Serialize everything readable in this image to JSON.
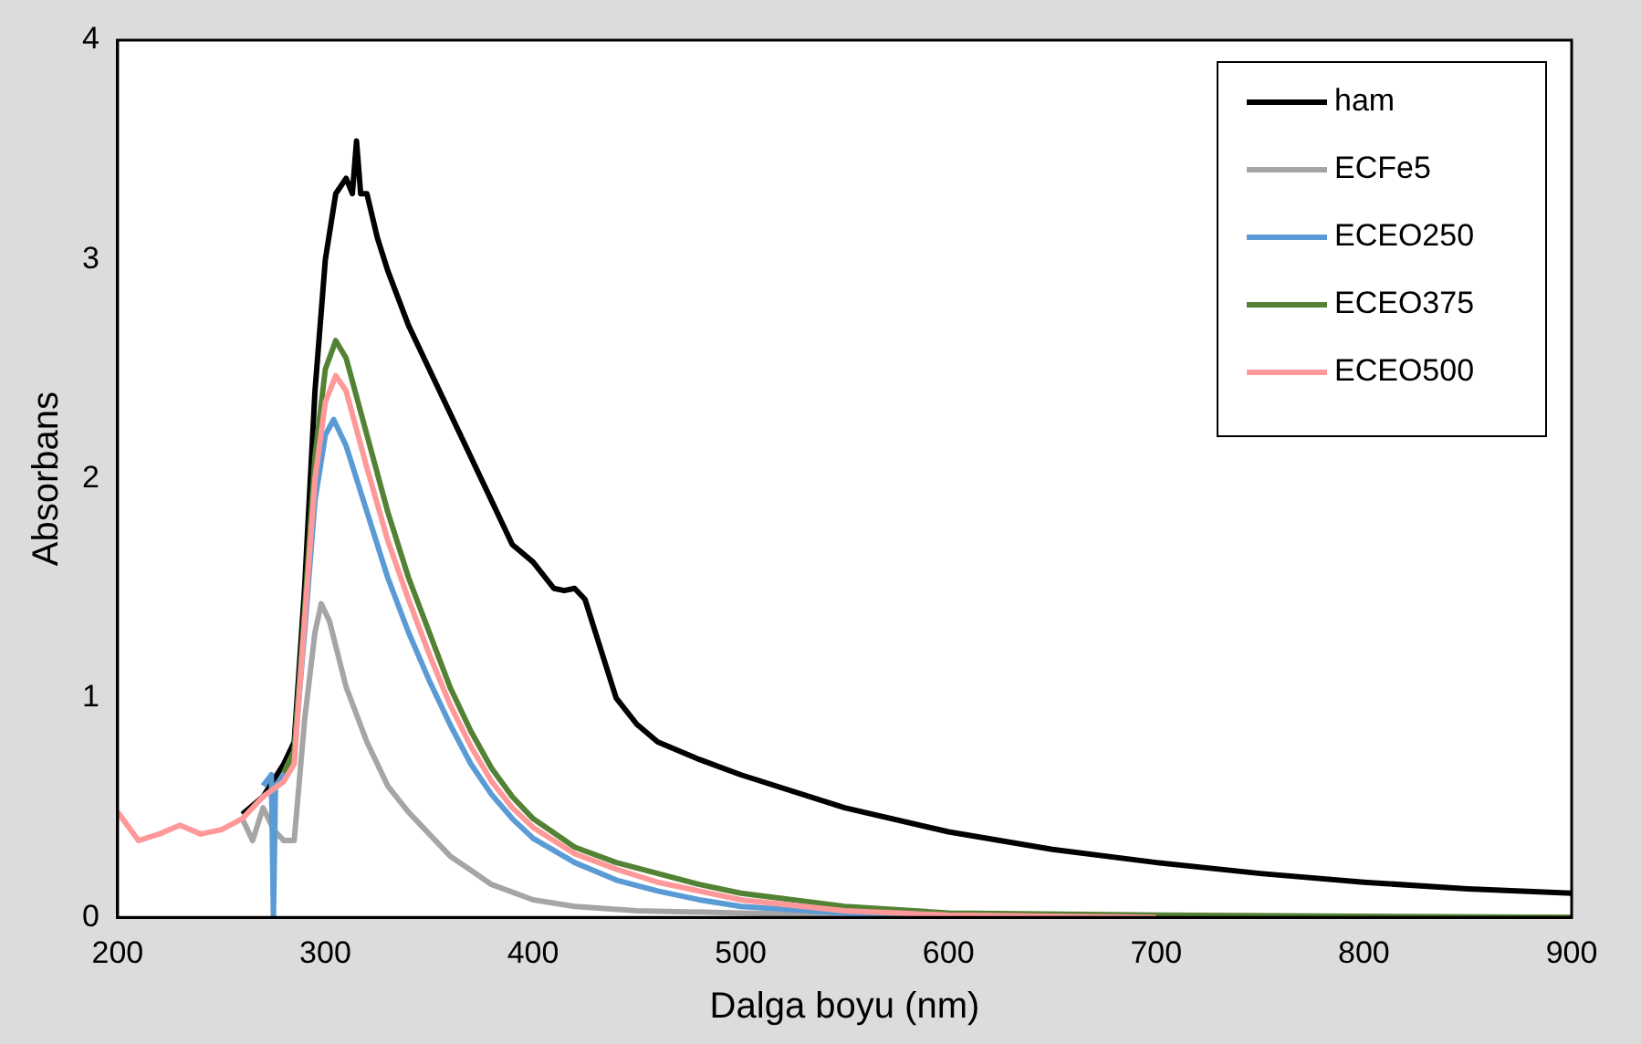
{
  "chart_data": {
    "type": "line",
    "xlabel": "Dalga boyu (nm)",
    "ylabel": "Absorbans",
    "xlim": [
      200,
      900
    ],
    "xticks": [
      200,
      300,
      400,
      500,
      600,
      700,
      800,
      900
    ],
    "ylim": [
      0,
      4
    ],
    "yticks": [
      0,
      1,
      2,
      3,
      4
    ],
    "grid": false,
    "legend": "top right",
    "marker": "none",
    "line_style": "solid",
    "series": [
      {
        "name": "ham",
        "color": "#000000",
        "x": [
          260,
          270,
          280,
          285,
          290,
          295,
          300,
          305,
          310,
          313,
          315,
          317,
          320,
          325,
          330,
          340,
          350,
          360,
          370,
          380,
          390,
          400,
          410,
          415,
          420,
          425,
          430,
          440,
          450,
          460,
          480,
          500,
          550,
          600,
          650,
          700,
          750,
          800,
          850,
          900
        ],
        "values": [
          0.47,
          0.55,
          0.7,
          0.8,
          1.5,
          2.4,
          3.0,
          3.3,
          3.37,
          3.3,
          3.54,
          3.3,
          3.3,
          3.1,
          2.95,
          2.7,
          2.5,
          2.3,
          2.1,
          1.9,
          1.7,
          1.62,
          1.5,
          1.49,
          1.5,
          1.45,
          1.3,
          1.0,
          0.88,
          0.8,
          0.72,
          0.65,
          0.5,
          0.39,
          0.31,
          0.25,
          0.2,
          0.16,
          0.13,
          0.11
        ]
      },
      {
        "name": "ECFe5",
        "color": "#a5a5a5",
        "x": [
          260,
          265,
          270,
          275,
          280,
          285,
          290,
          295,
          298,
          302,
          310,
          320,
          330,
          340,
          350,
          360,
          380,
          400,
          420,
          450,
          500,
          600,
          900
        ],
        "values": [
          0.45,
          0.35,
          0.5,
          0.4,
          0.35,
          0.35,
          0.9,
          1.3,
          1.43,
          1.35,
          1.05,
          0.8,
          0.6,
          0.48,
          0.38,
          0.28,
          0.15,
          0.08,
          0.05,
          0.03,
          0.02,
          0,
          0
        ]
      },
      {
        "name": "ECEO250",
        "color": "#5b9bd5",
        "x": [
          270,
          274,
          275,
          276,
          280,
          285,
          290,
          295,
          300,
          304,
          310,
          320,
          330,
          340,
          350,
          360,
          370,
          380,
          390,
          400,
          420,
          440,
          460,
          480,
          500,
          550,
          600
        ],
        "values": [
          0.6,
          0.65,
          0,
          0.6,
          0.65,
          0.75,
          1.3,
          1.9,
          2.2,
          2.27,
          2.15,
          1.85,
          1.55,
          1.3,
          1.08,
          0.88,
          0.7,
          0.56,
          0.45,
          0.36,
          0.25,
          0.17,
          0.12,
          0.08,
          0.05,
          0.02,
          0
        ]
      },
      {
        "name": "ECEO375",
        "color": "#548235",
        "x": [
          280,
          285,
          290,
          295,
          300,
          305,
          310,
          320,
          330,
          340,
          350,
          360,
          370,
          380,
          390,
          400,
          420,
          440,
          460,
          480,
          500,
          550,
          600,
          700,
          900
        ],
        "values": [
          0.66,
          0.76,
          1.4,
          2.1,
          2.5,
          2.63,
          2.55,
          2.2,
          1.85,
          1.55,
          1.3,
          1.05,
          0.85,
          0.68,
          0.55,
          0.45,
          0.32,
          0.25,
          0.2,
          0.15,
          0.11,
          0.05,
          0.02,
          0.01,
          0
        ]
      },
      {
        "name": "ECEO500",
        "color": "#ff9999",
        "x": [
          200,
          210,
          220,
          230,
          240,
          250,
          260,
          270,
          280,
          285,
          290,
          295,
          300,
          305,
          310,
          320,
          330,
          340,
          350,
          360,
          370,
          380,
          390,
          400,
          420,
          440,
          460,
          480,
          500,
          550,
          600,
          700
        ],
        "values": [
          0.48,
          0.35,
          0.38,
          0.42,
          0.38,
          0.4,
          0.45,
          0.55,
          0.62,
          0.7,
          1.35,
          2.0,
          2.35,
          2.47,
          2.4,
          2.05,
          1.72,
          1.45,
          1.2,
          0.97,
          0.78,
          0.62,
          0.5,
          0.41,
          0.29,
          0.22,
          0.16,
          0.12,
          0.08,
          0.03,
          0.01,
          0
        ]
      }
    ]
  }
}
